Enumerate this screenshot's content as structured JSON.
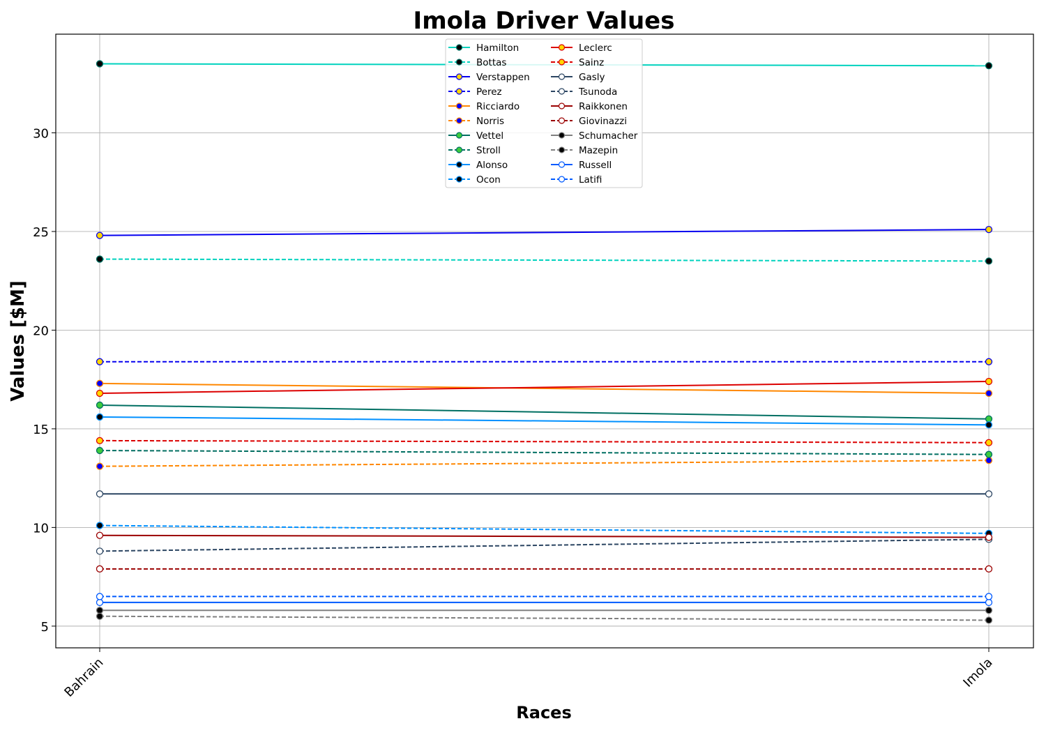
{
  "chart_data": {
    "type": "line",
    "title": "Imola Driver Values",
    "xlabel": "Races",
    "ylabel": "Values [$M]",
    "categories": [
      "Bahrain",
      "Imola"
    ],
    "ylim": [
      3.9,
      35.0
    ],
    "yticks": [
      5,
      10,
      15,
      20,
      25,
      30
    ],
    "grid": true,
    "legend_position": "top-center",
    "series": [
      {
        "name": "Hamilton",
        "values": [
          33.5,
          33.4
        ],
        "color": "#00D2BE",
        "dash": false,
        "marker_face": "#000000",
        "marker_edge": "#006F62"
      },
      {
        "name": "Bottas",
        "values": [
          23.6,
          23.5
        ],
        "color": "#00D2BE",
        "dash": true,
        "marker_face": "#000000",
        "marker_edge": "#006F62"
      },
      {
        "name": "Verstappen",
        "values": [
          24.8,
          25.1
        ],
        "color": "#0600EF",
        "dash": false,
        "marker_face": "#FFD700",
        "marker_edge": "#0600EF"
      },
      {
        "name": "Perez",
        "values": [
          18.4,
          18.4
        ],
        "color": "#0600EF",
        "dash": true,
        "marker_face": "#FFD700",
        "marker_edge": "#0600EF"
      },
      {
        "name": "Ricciardo",
        "values": [
          17.3,
          16.8
        ],
        "color": "#FF8700",
        "dash": false,
        "marker_face": "#0000FF",
        "marker_edge": "#FF8700"
      },
      {
        "name": "Norris",
        "values": [
          13.1,
          13.4
        ],
        "color": "#FF8700",
        "dash": true,
        "marker_face": "#0000FF",
        "marker_edge": "#FF8700"
      },
      {
        "name": "Vettel",
        "values": [
          16.2,
          15.5
        ],
        "color": "#006F62",
        "dash": false,
        "marker_face": "#3DCC3D",
        "marker_edge": "#006F62"
      },
      {
        "name": "Stroll",
        "values": [
          13.9,
          13.7
        ],
        "color": "#006F62",
        "dash": true,
        "marker_face": "#3DCC3D",
        "marker_edge": "#006F62"
      },
      {
        "name": "Alonso",
        "values": [
          15.6,
          15.2
        ],
        "color": "#0090FF",
        "dash": false,
        "marker_face": "#000000",
        "marker_edge": "#0090FF"
      },
      {
        "name": "Ocon",
        "values": [
          10.1,
          9.7
        ],
        "color": "#0090FF",
        "dash": true,
        "marker_face": "#000000",
        "marker_edge": "#0090FF"
      },
      {
        "name": "Leclerc",
        "values": [
          16.8,
          17.4
        ],
        "color": "#DC0000",
        "dash": false,
        "marker_face": "#FFD700",
        "marker_edge": "#DC0000"
      },
      {
        "name": "Sainz",
        "values": [
          14.4,
          14.3
        ],
        "color": "#DC0000",
        "dash": true,
        "marker_face": "#FFD700",
        "marker_edge": "#DC0000"
      },
      {
        "name": "Gasly",
        "values": [
          11.7,
          11.7
        ],
        "color": "#2B4562",
        "dash": false,
        "marker_face": "#FFFFFF",
        "marker_edge": "#2B4562"
      },
      {
        "name": "Tsunoda",
        "values": [
          8.8,
          9.4
        ],
        "color": "#2B4562",
        "dash": true,
        "marker_face": "#FFFFFF",
        "marker_edge": "#2B4562"
      },
      {
        "name": "Raikkonen",
        "values": [
          9.6,
          9.5
        ],
        "color": "#9B0000",
        "dash": false,
        "marker_face": "#FFFFFF",
        "marker_edge": "#9B0000"
      },
      {
        "name": "Giovinazzi",
        "values": [
          7.9,
          7.9
        ],
        "color": "#9B0000",
        "dash": true,
        "marker_face": "#FFFFFF",
        "marker_edge": "#9B0000"
      },
      {
        "name": "Schumacher",
        "values": [
          5.8,
          5.8
        ],
        "color": "#808080",
        "dash": false,
        "marker_face": "#000000",
        "marker_edge": "#808080"
      },
      {
        "name": "Mazepin",
        "values": [
          5.5,
          5.3
        ],
        "color": "#808080",
        "dash": true,
        "marker_face": "#000000",
        "marker_edge": "#808080"
      },
      {
        "name": "Russell",
        "values": [
          6.2,
          6.2
        ],
        "color": "#005AFF",
        "dash": false,
        "marker_face": "#FFFFFF",
        "marker_edge": "#005AFF"
      },
      {
        "name": "Latifi",
        "values": [
          6.5,
          6.5
        ],
        "color": "#005AFF",
        "dash": true,
        "marker_face": "#FFFFFF",
        "marker_edge": "#005AFF"
      }
    ]
  }
}
